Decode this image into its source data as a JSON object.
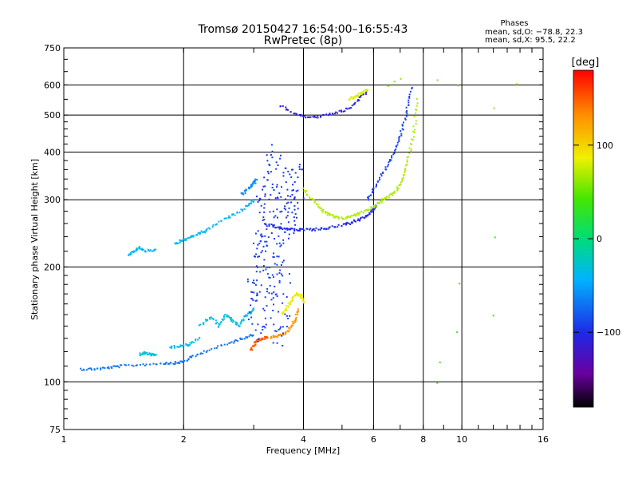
{
  "chart_data": {
    "type": "scatter",
    "title": "Tromsø 20150427 16:54:00–16:55:43",
    "subtitle": "RwPretec (8p)",
    "xlabel": "Frequency [MHz]",
    "ylabel": "Stationary phase Virtual Height [km]",
    "x_scale": "log",
    "y_scale": "log",
    "xlim": [
      1,
      16
    ],
    "ylim": [
      75,
      750
    ],
    "grid": true,
    "x_ticks": [
      "1",
      "2",
      "4",
      "6",
      "8",
      "10",
      "16"
    ],
    "x_tick_values": [
      1,
      2,
      4,
      6,
      8,
      10,
      16
    ],
    "y_ticks": [
      "750",
      "600",
      "500",
      "400",
      "300",
      "200",
      "100",
      "75"
    ],
    "y_tick_values": [
      750,
      600,
      500,
      400,
      300,
      200,
      100,
      75
    ],
    "phases": {
      "heading": "Phases",
      "line_o": "mean, sd,O: −78.8, 22.3",
      "line_x": "mean, sd,X:  95.5, 22.2"
    },
    "colorbar": {
      "label": "[deg]",
      "ticks": [
        "100",
        "0",
        "−100"
      ],
      "tick_values": [
        100,
        0,
        -100
      ],
      "range": [
        -180,
        180
      ],
      "colormap": "rainbow (black → violet → blue → cyan → green → yellow → red)"
    },
    "traces": [
      {
        "kind": "curve",
        "phase": -70,
        "x": [
          1.1,
          1.2,
          1.3,
          1.4,
          1.6,
          1.8,
          1.9,
          2.0,
          2.1,
          2.3,
          2.6,
          2.8,
          3.0
        ],
        "y": [
          108,
          108,
          109,
          110,
          111,
          112,
          112,
          113,
          116,
          121,
          126,
          130,
          133
        ]
      },
      {
        "kind": "curve",
        "phase": -30,
        "x": [
          1.55,
          1.6,
          1.65,
          1.7
        ],
        "y": [
          118,
          119,
          118,
          118
        ]
      },
      {
        "kind": "curve",
        "phase": -35,
        "x": [
          1.85,
          1.95,
          2.05,
          2.2
        ],
        "y": [
          123,
          124,
          125,
          130
        ]
      },
      {
        "kind": "curve",
        "phase": -35,
        "x": [
          2.2,
          2.35,
          2.45,
          2.55,
          2.65,
          2.75,
          2.85,
          2.95,
          3.0
        ],
        "y": [
          140,
          148,
          140,
          150,
          145,
          140,
          148,
          152,
          155
        ]
      },
      {
        "kind": "curve",
        "phase": 150,
        "x": [
          2.95,
          3.0,
          3.05,
          3.15,
          3.25
        ],
        "y": [
          121,
          125,
          128,
          130,
          131
        ]
      },
      {
        "kind": "curve",
        "phase": 130,
        "x": [
          3.3,
          3.45,
          3.6,
          3.7,
          3.8,
          3.9
        ],
        "y": [
          131,
          132,
          134,
          138,
          145,
          155
        ]
      },
      {
        "kind": "cloud",
        "phase": -90,
        "x": [
          3.0,
          3.05,
          3.1,
          3.15,
          3.2,
          3.3,
          3.4,
          3.45,
          3.5,
          3.6
        ],
        "y": [
          160,
          185,
          210,
          150,
          230,
          170,
          195,
          145,
          220,
          165
        ]
      },
      {
        "kind": "curve",
        "phase": 90,
        "x": [
          3.55,
          3.65,
          3.75,
          3.85,
          3.95,
          4.0
        ],
        "y": [
          150,
          158,
          165,
          170,
          168,
          160
        ]
      },
      {
        "kind": "curve",
        "phase": -40,
        "x": [
          1.45,
          1.5,
          1.55,
          1.6,
          1.7
        ],
        "y": [
          215,
          220,
          225,
          220,
          222
        ]
      },
      {
        "kind": "curve",
        "phase": -40,
        "x": [
          1.9,
          2.0,
          2.1,
          2.2,
          2.3,
          2.5,
          2.7,
          2.9,
          3.0
        ],
        "y": [
          230,
          235,
          240,
          245,
          250,
          265,
          275,
          290,
          300
        ]
      },
      {
        "kind": "curve",
        "phase": -60,
        "x": [
          2.8,
          2.9,
          3.0,
          3.05
        ],
        "y": [
          310,
          320,
          330,
          340
        ]
      },
      {
        "kind": "cloud",
        "phase": -95,
        "x": [
          3.1,
          3.2,
          3.3,
          3.4,
          3.5,
          3.6,
          3.7,
          3.8,
          3.9
        ],
        "y": [
          260,
          300,
          360,
          280,
          330,
          270,
          320,
          290,
          310
        ]
      },
      {
        "kind": "curve",
        "phase": -100,
        "x": [
          3.2,
          3.4,
          3.6,
          3.8,
          4.0,
          4.3,
          4.6,
          5.0,
          5.3,
          5.6,
          5.9,
          6.1
        ],
        "y": [
          260,
          255,
          252,
          250,
          250,
          251,
          253,
          257,
          262,
          268,
          277,
          290
        ]
      },
      {
        "kind": "curve",
        "phase": 70,
        "x": [
          4.0,
          4.2,
          4.4,
          4.6,
          4.8,
          5.0,
          5.3,
          5.6,
          5.9,
          6.2,
          6.5,
          6.8,
          7.0,
          7.2,
          7.4,
          7.6,
          7.7
        ],
        "y": [
          320,
          300,
          285,
          275,
          270,
          268,
          272,
          278,
          285,
          295,
          305,
          315,
          330,
          355,
          400,
          460,
          550
        ]
      },
      {
        "kind": "curve",
        "phase": -90,
        "x": [
          5.8,
          6.0,
          6.3,
          6.6,
          6.9,
          7.1,
          7.3,
          7.5
        ],
        "y": [
          300,
          320,
          350,
          380,
          420,
          460,
          520,
          590
        ]
      },
      {
        "kind": "curve",
        "phase": -110,
        "x": [
          3.5,
          3.8,
          4.1,
          4.4,
          4.8,
          5.2,
          5.5,
          5.8
        ],
        "y": [
          530,
          505,
          495,
          495,
          505,
          520,
          550,
          580
        ]
      },
      {
        "kind": "curve",
        "phase": 80,
        "x": [
          5.2,
          5.4,
          5.6,
          5.8
        ],
        "y": [
          550,
          560,
          570,
          580
        ]
      },
      {
        "kind": "scatter",
        "phase": 60,
        "x": [
          6.5,
          6.8,
          7.0,
          8.7,
          9.8,
          12.0,
          13.8
        ],
        "y": [
          600,
          610,
          620,
          615,
          600,
          520,
          600
        ]
      },
      {
        "kind": "scatter",
        "phase": 40,
        "x": [
          8.7,
          8.8,
          9.7,
          9.8,
          12.0,
          12.1
        ],
        "y": [
          100,
          112,
          135,
          180,
          150,
          240
        ]
      }
    ]
  }
}
